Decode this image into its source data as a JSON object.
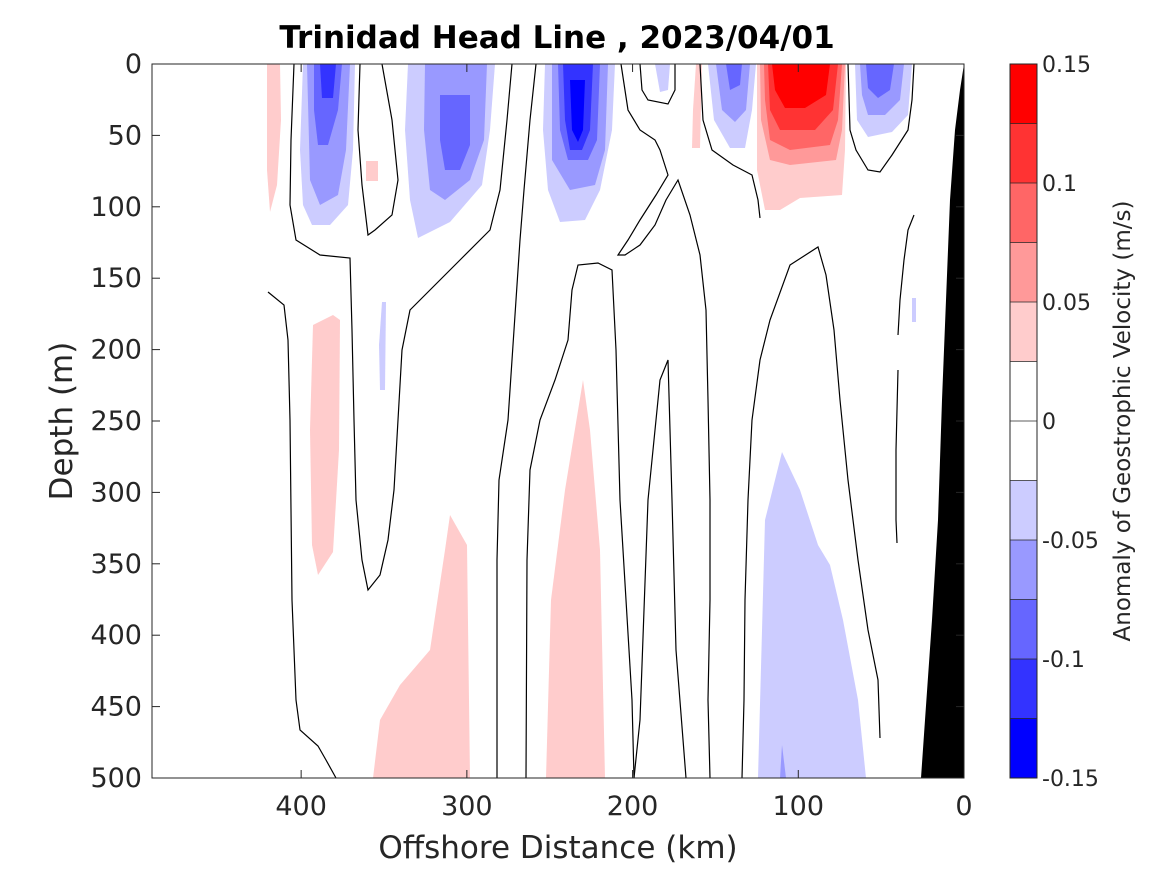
{
  "chart_data": {
    "type": "heatmap",
    "title": "Trinidad Head Line , 2023/04/01",
    "xlabel": "Offshore Distance (km)",
    "ylabel": "Depth (m)",
    "xlim": [
      490,
      0
    ],
    "ylim": [
      0,
      500
    ],
    "xticks": [
      "400",
      "300",
      "200",
      "100",
      "0"
    ],
    "xtick_values": [
      400,
      300,
      200,
      100,
      0
    ],
    "yticks": [
      "0",
      "50",
      "100",
      "150",
      "200",
      "250",
      "300",
      "350",
      "400",
      "450",
      "500"
    ],
    "ytick_values": [
      0,
      50,
      100,
      150,
      200,
      250,
      300,
      350,
      400,
      450,
      500
    ],
    "colorbar": {
      "label": "Anomaly of Geostrophic Velocity (m/s)",
      "ticks": [
        "0.15",
        "0.1",
        "0.05",
        "0",
        "-0.05",
        "-0.1",
        "-0.15"
      ],
      "tick_values": [
        0.15,
        0.1,
        0.05,
        0,
        -0.05,
        -0.1,
        -0.15
      ],
      "levels": [
        0.15,
        0.125,
        0.1,
        0.075,
        0.05,
        0.025,
        0,
        -0.025,
        -0.05,
        -0.075,
        -0.1,
        -0.125,
        -0.15
      ],
      "colors": [
        "#ff0000",
        "#ff3333",
        "#ff6666",
        "#ff9999",
        "#ffcccc",
        "#ffffff",
        "#ffffff",
        "#ccccff",
        "#9999ff",
        "#6666ff",
        "#3333ff",
        "#0000ff"
      ]
    },
    "features": [
      {
        "name": "positive anomaly core",
        "x_km": 98,
        "depth_range_m": [
          0,
          100
        ],
        "max_value": 0.14
      },
      {
        "name": "negative anomaly core",
        "x_km": 232,
        "depth_range_m": [
          0,
          110
        ],
        "min_value": -0.13
      },
      {
        "name": "negative anomaly",
        "x_km": 318,
        "depth_range_m": [
          0,
          120
        ],
        "min_value": -0.09
      },
      {
        "name": "negative anomaly",
        "x_km": 385,
        "depth_range_m": [
          0,
          110
        ],
        "min_value": -0.1
      },
      {
        "name": "negative anomaly",
        "x_km": 53,
        "depth_range_m": [
          0,
          50
        ],
        "min_value": -0.1
      },
      {
        "name": "negative anomaly",
        "x_km": 140,
        "depth_range_m": [
          0,
          55
        ],
        "min_value": -0.08
      },
      {
        "name": "deep negative anomaly",
        "x_km": 90,
        "depth_range_m": [
          270,
          500
        ],
        "min_value": -0.06
      },
      {
        "name": "deep positive anomaly",
        "x_km": 225,
        "depth_range_m": [
          220,
          500
        ],
        "max_value": 0.04
      },
      {
        "name": "deep positive anomaly",
        "x_km": 320,
        "depth_range_m": [
          315,
          500
        ],
        "max_value": 0.04
      },
      {
        "name": "positive anomaly",
        "x_km": 385,
        "depth_range_m": [
          180,
          355
        ],
        "max_value": 0.04
      }
    ],
    "bathymetry_fill": "#000000"
  }
}
